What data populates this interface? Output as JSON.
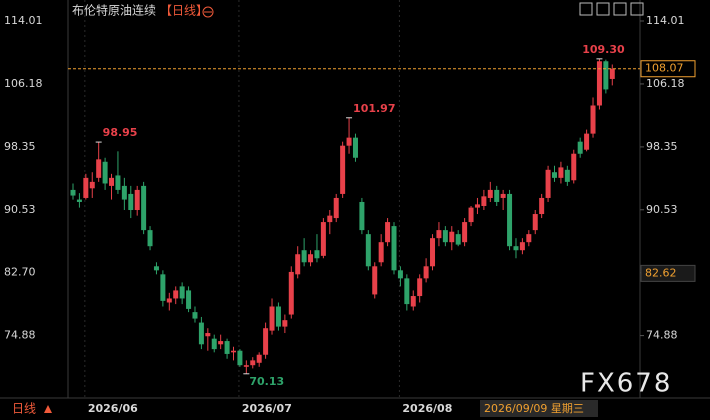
{
  "header": {
    "title": "布伦特原油连续",
    "period": "【日线】"
  },
  "footer": {
    "period_button": "日线",
    "watermark": "FX678"
  },
  "chart_data": {
    "type": "candlestick",
    "categories": [
      null,
      null,
      "2026/06",
      null,
      null,
      null,
      null,
      null,
      null,
      null,
      null,
      null,
      null,
      null,
      null,
      null,
      null,
      null,
      null,
      null,
      null,
      null,
      null,
      null,
      null,
      null,
      "2026/07",
      null,
      null,
      null,
      null,
      null,
      null,
      null,
      null,
      null,
      null,
      null,
      null,
      null,
      null,
      null,
      null,
      null,
      null,
      null,
      null,
      null,
      null,
      null,
      null,
      "2026/08",
      null,
      null,
      null,
      null,
      null,
      null,
      null,
      null,
      null,
      null,
      null,
      null,
      null,
      null,
      null,
      null,
      null,
      null,
      null,
      null,
      null,
      null,
      null,
      null,
      null,
      null,
      null,
      null,
      null,
      null,
      null,
      null,
      null
    ],
    "open": [
      93.0,
      91.8,
      92.0,
      93.2,
      94.5,
      96.5,
      93.5,
      94.8,
      93.5,
      92.5,
      90.5,
      93.5,
      88.0,
      83.5,
      82.5,
      79.0,
      79.5,
      81.0,
      80.5,
      77.8,
      76.5,
      74.8,
      74.5,
      73.8,
      74.2,
      72.8,
      73.0,
      71.0,
      71.2,
      71.5,
      72.5,
      75.5,
      78.5,
      76.0,
      77.5,
      82.5,
      85.5,
      84.0,
      85.5,
      84.8,
      89.0,
      89.5,
      92.5,
      98.5,
      99.5,
      91.5,
      87.5,
      80.0,
      84.0,
      86.5,
      88.5,
      83.0,
      82.0,
      78.5,
      79.8,
      82.0,
      83.5,
      87.0,
      88.0,
      86.5,
      87.5,
      86.5,
      89.0,
      90.8,
      91.0,
      92.0,
      93.0,
      92.0,
      92.5,
      86.0,
      85.5,
      86.5,
      88.0,
      90.0,
      92.0,
      95.2,
      94.5,
      95.5,
      94.2,
      99.0,
      98.0,
      100.0,
      103.5,
      109.0,
      106.8
    ],
    "high": [
      93.8,
      92.6,
      95.0,
      95.2,
      98.95,
      97.0,
      95.0,
      97.8,
      94.5,
      93.5,
      93.5,
      94.0,
      88.5,
      84.0,
      83.0,
      80.2,
      81.0,
      81.5,
      81.0,
      78.5,
      77.2,
      75.8,
      75.0,
      75.0,
      74.5,
      73.5,
      73.2,
      71.8,
      72.2,
      72.8,
      76.5,
      79.5,
      79.0,
      77.5,
      83.5,
      86.0,
      87.0,
      85.5,
      87.5,
      89.5,
      90.5,
      92.5,
      99.0,
      101.97,
      100.0,
      92.0,
      88.0,
      84.0,
      87.5,
      89.5,
      89.0,
      83.5,
      82.5,
      80.5,
      82.5,
      84.5,
      87.5,
      89.0,
      88.5,
      88.5,
      88.0,
      89.5,
      91.0,
      92.0,
      93.0,
      94.0,
      93.5,
      93.0,
      93.0,
      87.0,
      87.0,
      88.0,
      90.5,
      92.5,
      96.0,
      96.0,
      96.5,
      96.0,
      98.0,
      99.5,
      100.5,
      104.5,
      109.3,
      109.2,
      108.6
    ],
    "low": [
      91.8,
      90.8,
      91.8,
      92.0,
      94.0,
      93.0,
      91.8,
      92.5,
      90.5,
      89.5,
      89.8,
      87.5,
      85.5,
      82.5,
      78.5,
      78.0,
      78.8,
      78.8,
      77.8,
      76.5,
      73.2,
      73.0,
      72.8,
      73.2,
      72.0,
      71.8,
      71.0,
      70.13,
      70.8,
      71.0,
      72.0,
      75.0,
      75.5,
      75.2,
      77.0,
      82.0,
      83.5,
      83.5,
      84.0,
      84.5,
      87.5,
      89.0,
      92.0,
      97.5,
      96.5,
      87.5,
      83.0,
      79.5,
      83.5,
      86.0,
      82.5,
      81.0,
      78.0,
      78.0,
      79.0,
      81.5,
      83.0,
      86.0,
      86.0,
      85.5,
      86.0,
      86.0,
      88.5,
      90.0,
      90.5,
      91.5,
      91.0,
      90.5,
      85.5,
      84.5,
      85.0,
      86.0,
      87.5,
      89.5,
      91.5,
      94.0,
      93.8,
      93.5,
      93.8,
      97.0,
      97.8,
      99.5,
      103.0,
      105.0,
      106.0
    ],
    "close": [
      92.3,
      91.5,
      94.5,
      94.0,
      96.8,
      93.8,
      94.5,
      93.0,
      91.8,
      90.5,
      93.0,
      88.0,
      86.0,
      83.0,
      79.2,
      79.5,
      80.5,
      79.5,
      78.2,
      77.0,
      73.8,
      75.2,
      73.2,
      74.2,
      72.6,
      73.0,
      71.2,
      71.2,
      71.8,
      72.5,
      75.8,
      78.5,
      76.0,
      76.8,
      82.8,
      85.0,
      84.0,
      85.0,
      84.5,
      89.0,
      89.8,
      92.0,
      98.5,
      99.5,
      97.0,
      88.0,
      83.5,
      83.5,
      86.5,
      89.0,
      83.0,
      82.0,
      78.8,
      79.8,
      82.0,
      83.5,
      87.0,
      88.0,
      86.5,
      87.8,
      86.2,
      89.0,
      90.8,
      91.2,
      92.2,
      93.0,
      91.5,
      92.5,
      86.0,
      85.5,
      86.5,
      87.5,
      90.0,
      92.0,
      95.5,
      94.5,
      95.8,
      94.0,
      97.5,
      97.5,
      100.0,
      103.5,
      109.0,
      105.5,
      108.07
    ],
    "up_color": "#e8414a",
    "down_color": "#2ea36a",
    "ylim": [
      67.12,
      116.62
    ],
    "yticks": [
      114.01,
      106.18,
      98.35,
      90.53,
      {
        "value": 82.7,
        "label": "82.70"
      },
      74.88
    ],
    "annotations": [
      98.95,
      101.97,
      {
        "value": 109.3,
        "label": "109.30"
      },
      70.13
    ],
    "last_price": 108.07,
    "last_price_color": "#f0a030",
    "crosshair": {
      "price": 82.62,
      "date": "2026/09/09 星期三"
    }
  }
}
